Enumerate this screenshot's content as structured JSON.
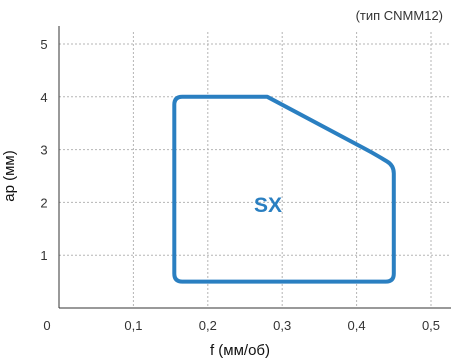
{
  "chart_data": {
    "type": "area",
    "note": "(тип CNMM12)",
    "xlabel": "f (мм/об)",
    "ylabel": "ap (мм)",
    "xlim": [
      0,
      0.5
    ],
    "ylim": [
      0,
      5
    ],
    "x_ticks": [
      "0",
      "0,1",
      "0,2",
      "0,3",
      "0,4",
      "0,5"
    ],
    "y_ticks": [
      "1",
      "2",
      "3",
      "4",
      "5"
    ],
    "grid": true,
    "region": {
      "label": "SX",
      "color": "#2a7fc1",
      "boundary": [
        {
          "x": 0.155,
          "y": 0.5
        },
        {
          "x": 0.155,
          "y": 4.0
        },
        {
          "x": 0.28,
          "y": 4.0
        },
        {
          "x": 0.42,
          "y": 2.95
        },
        {
          "x": 0.45,
          "y": 2.7
        },
        {
          "x": 0.45,
          "y": 0.5
        }
      ]
    }
  }
}
